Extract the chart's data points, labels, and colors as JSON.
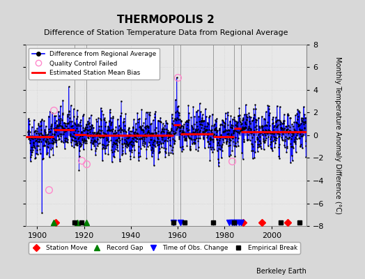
{
  "title": "THERMOPOLIS 2",
  "subtitle": "Difference of Station Temperature Data from Regional Average",
  "ylabel": "Monthly Temperature Anomaly Difference (°C)",
  "bg_color": "#d8d8d8",
  "plot_bg_color": "#e8e8e8",
  "ylim": [
    -8,
    8
  ],
  "xlim": [
    1895,
    2015
  ],
  "xticks": [
    1900,
    1920,
    1940,
    1960,
    1980,
    2000
  ],
  "yticks": [
    -8,
    -6,
    -4,
    -2,
    0,
    2,
    4,
    6,
    8
  ],
  "seed": 42,
  "station_moves": [
    1908,
    1988,
    1996,
    2007
  ],
  "record_gaps": [
    1907,
    1917,
    1921
  ],
  "time_obs_changes": [
    1958,
    1961,
    1982,
    1983,
    1984,
    1985,
    1986,
    1987
  ],
  "empirical_breaks": [
    1916,
    1919,
    1958,
    1963,
    1975,
    1984,
    2004,
    2012
  ],
  "vertical_lines": [
    1916,
    1921,
    1958,
    1961,
    1975,
    1984,
    1987
  ],
  "bias_segments": [
    {
      "xstart": 1895,
      "xend": 1907,
      "bias": -0.15
    },
    {
      "xstart": 1907,
      "xend": 1916,
      "bias": 0.5
    },
    {
      "xstart": 1916,
      "xend": 1921,
      "bias": 0.05
    },
    {
      "xstart": 1921,
      "xend": 1958,
      "bias": 0.0
    },
    {
      "xstart": 1958,
      "xend": 1961,
      "bias": 0.9
    },
    {
      "xstart": 1961,
      "xend": 1975,
      "bias": 0.1
    },
    {
      "xstart": 1975,
      "xend": 1984,
      "bias": -0.15
    },
    {
      "xstart": 1984,
      "xend": 1987,
      "bias": 0.6
    },
    {
      "xstart": 1987,
      "xend": 2015,
      "bias": 0.3
    }
  ],
  "qc_failed_years": [
    1905,
    1907,
    1919,
    1921,
    1960,
    1983
  ],
  "qc_failed_values": [
    -4.8,
    2.2,
    -2.2,
    -2.5,
    5.1,
    -2.3
  ],
  "marker_y": -7.7,
  "figsize": [
    5.24,
    4.0
  ],
  "dpi": 100
}
